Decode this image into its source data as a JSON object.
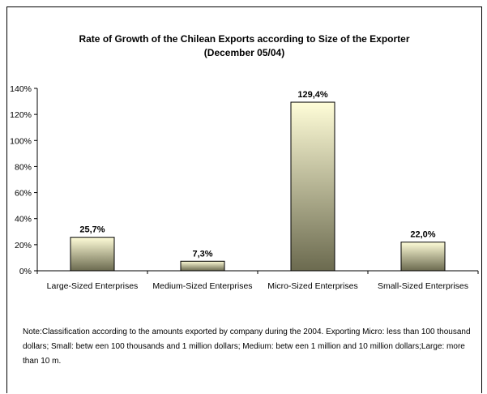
{
  "chart_data": {
    "type": "bar",
    "title_lines": [
      "Rate of Growth of the Chilean Exports according to Size of the Exporter",
      "(December 05/04)"
    ],
    "categories": [
      "Large-Sized Enterprises",
      "Medium-Sized Enterprises",
      "Micro-Sized Enterprises",
      "Small-Sized Enterprises"
    ],
    "values": [
      25.7,
      7.3,
      129.4,
      22.0
    ],
    "data_labels": [
      "25,7%",
      "7,3%",
      "129,4%",
      "22,0%"
    ],
    "ylim": [
      0,
      140
    ],
    "yticks": [
      0,
      20,
      40,
      60,
      80,
      100,
      120,
      140
    ],
    "ytick_labels": [
      "0%",
      "20%",
      "40%",
      "60%",
      "80%",
      "100%",
      "120%",
      "140%"
    ],
    "grid": false,
    "legend": "none",
    "colors": {
      "bar_top": "#fffdd8",
      "bar_bottom": "#6b6a4f",
      "bar_outline": "#000000"
    }
  },
  "note": "Note:Classification according to the amounts exported by company during the 2004. Exporting Micro: less than 100 thousand dollars; Small: betw een 100 thousands and 1 million dollars; Medium: betw een 1 million and 10 million dollars;Large: more than 10  m."
}
